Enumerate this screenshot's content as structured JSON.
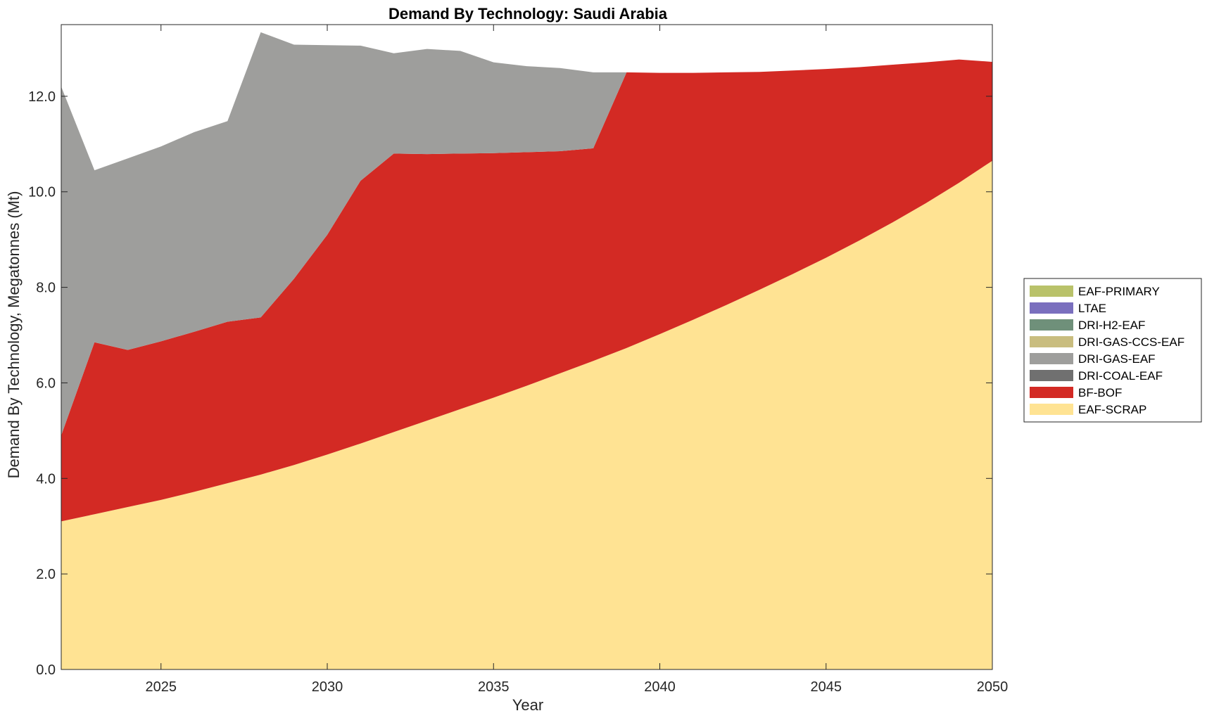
{
  "chart_data": {
    "type": "area",
    "stacked": true,
    "title": "Demand By Technology: Saudi Arabia",
    "xlabel": "Year",
    "ylabel": "Demand By Technology, Megatonnes (Mt)",
    "xlim": [
      2022,
      2050
    ],
    "ylim": [
      0,
      13.5
    ],
    "x_ticks": [
      2025,
      2030,
      2035,
      2040,
      2045,
      2050
    ],
    "y_ticks": [
      "0.0",
      "2.0",
      "4.0",
      "6.0",
      "8.0",
      "10.0",
      "12.0"
    ],
    "grid": false,
    "legend_placement": "right",
    "x": [
      2022,
      2023,
      2024,
      2025,
      2026,
      2027,
      2028,
      2029,
      2030,
      2031,
      2032,
      2033,
      2034,
      2035,
      2036,
      2037,
      2038,
      2039,
      2040,
      2041,
      2042,
      2043,
      2044,
      2045,
      2046,
      2047,
      2048,
      2049,
      2050
    ],
    "series": [
      {
        "name": "EAF-SCRAP",
        "color": "#FFE393",
        "values": [
          3.1,
          3.25,
          3.4,
          3.55,
          3.72,
          3.9,
          4.08,
          4.28,
          4.5,
          4.73,
          4.97,
          5.21,
          5.45,
          5.69,
          5.94,
          6.2,
          6.46,
          6.73,
          7.02,
          7.32,
          7.63,
          7.95,
          8.28,
          8.62,
          8.98,
          9.36,
          9.76,
          10.19,
          10.65
        ]
      },
      {
        "name": "BF-BOF",
        "color": "#D32A24",
        "values": [
          1.8,
          3.6,
          3.29,
          3.32,
          3.35,
          3.38,
          3.29,
          3.9,
          4.6,
          5.5,
          5.83,
          5.58,
          5.35,
          5.12,
          4.89,
          4.65,
          4.45,
          5.77,
          5.47,
          5.17,
          4.87,
          4.56,
          4.26,
          3.95,
          3.63,
          3.3,
          2.95,
          2.58,
          2.07
        ]
      },
      {
        "name": "DRI-COAL-EAF",
        "color": "#707070",
        "values": [
          0,
          0,
          0,
          0,
          0,
          0,
          0,
          0,
          0,
          0,
          0,
          0,
          0,
          0,
          0,
          0,
          0,
          0,
          0,
          0,
          0,
          0,
          0,
          0,
          0,
          0,
          0,
          0,
          0
        ]
      },
      {
        "name": "DRI-GAS-EAF",
        "color": "#9E9E9C",
        "values": [
          7.3,
          3.6,
          4.01,
          4.08,
          4.18,
          4.2,
          5.97,
          4.9,
          3.97,
          2.83,
          2.1,
          2.2,
          2.15,
          1.9,
          1.8,
          1.74,
          1.59,
          0,
          0,
          0,
          0,
          0,
          0,
          0,
          0,
          0,
          0,
          0,
          0
        ]
      },
      {
        "name": "DRI-GAS-CCS-EAF",
        "color": "#C9BD7F",
        "values": [
          0,
          0,
          0,
          0,
          0,
          0,
          0,
          0,
          0,
          0,
          0,
          0,
          0,
          0,
          0,
          0,
          0,
          0,
          0,
          0,
          0,
          0,
          0,
          0,
          0,
          0,
          0,
          0,
          0
        ]
      },
      {
        "name": "DRI-H2-EAF",
        "color": "#6F907A",
        "values": [
          0,
          0,
          0,
          0,
          0,
          0,
          0,
          0,
          0,
          0,
          0,
          0,
          0,
          0,
          0,
          0,
          0,
          0,
          0,
          0,
          0,
          0,
          0,
          0,
          0,
          0,
          0,
          0,
          0
        ]
      },
      {
        "name": "LTAE",
        "color": "#7A6FBE",
        "values": [
          0,
          0,
          0,
          0,
          0,
          0,
          0,
          0,
          0,
          0,
          0,
          0,
          0,
          0,
          0,
          0,
          0,
          0,
          0,
          0,
          0,
          0,
          0,
          0,
          0,
          0,
          0,
          0,
          0
        ]
      },
      {
        "name": "EAF-PRIMARY",
        "color": "#B9C26A",
        "values": [
          0,
          0,
          0,
          0,
          0,
          0,
          0,
          0,
          0,
          0,
          0,
          0,
          0,
          0,
          0,
          0,
          0,
          0,
          0,
          0,
          0,
          0,
          0,
          0,
          0,
          0,
          0,
          0,
          0
        ]
      }
    ],
    "legend_order": [
      "EAF-PRIMARY",
      "LTAE",
      "DRI-H2-EAF",
      "DRI-GAS-CCS-EAF",
      "DRI-GAS-EAF",
      "DRI-COAL-EAF",
      "BF-BOF",
      "EAF-SCRAP"
    ]
  }
}
